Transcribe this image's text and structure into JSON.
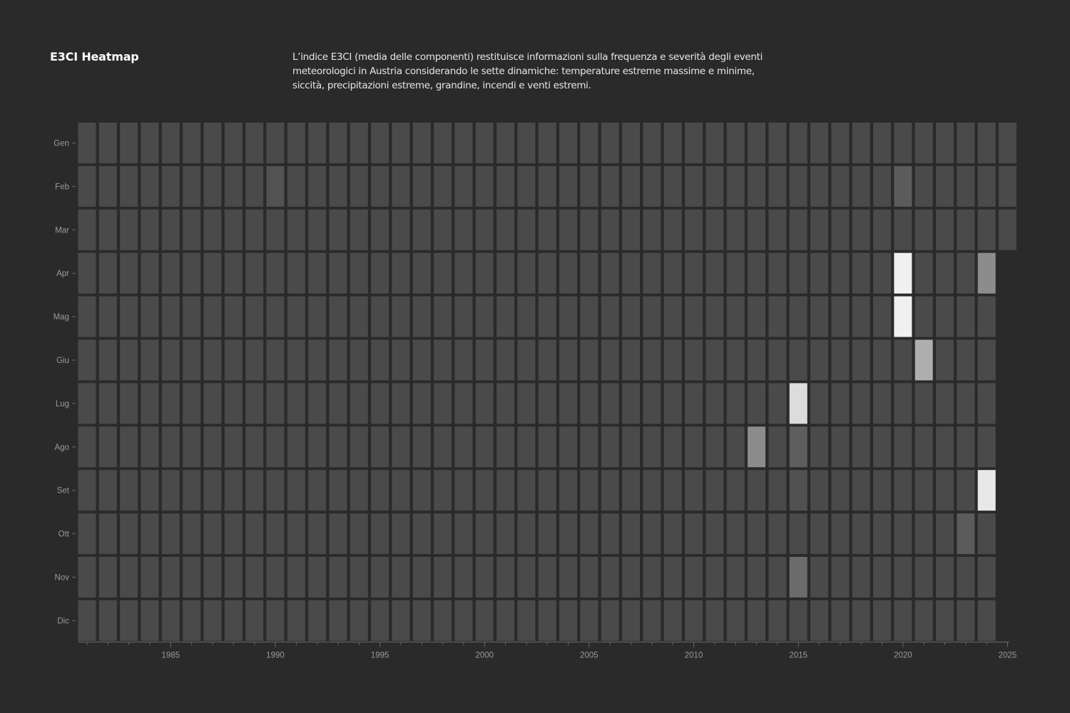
{
  "header": {
    "title": "E3CI Heatmap",
    "description": "L’indice E3CI (media delle componenti) restituisce informazioni sulla frequenza e severità degli eventi meteorologici in Austria considerando le sette dinamiche: temperature estreme massime e minime, siccità, precipitazioni estreme, grandine, incendi e venti estremi."
  },
  "colors": {
    "background": "#2a2a2a",
    "cell_base": "#4a4a4a",
    "cell_max": "#f0f0f0",
    "axis": "#6a6a6a",
    "tick_text": "#9a9a9a"
  },
  "chart_data": {
    "type": "heatmap",
    "title": "E3CI Heatmap",
    "x_labels": [
      "1985",
      "1990",
      "1995",
      "2000",
      "2005",
      "2010",
      "2015",
      "2020",
      "2025"
    ],
    "y_labels": [
      "Gen",
      "Feb",
      "Mar",
      "Apr",
      "Mag",
      "Giu",
      "Lug",
      "Ago",
      "Set",
      "Ott",
      "Nov",
      "Dic"
    ],
    "year_range": [
      1981,
      2025
    ],
    "last_month": "2025-03",
    "value_scale": "0 = base grey, 1 = near white",
    "highlights": [
      {
        "year": 1990,
        "month": "Feb",
        "value": 0.05
      },
      {
        "year": 2020,
        "month": "Feb",
        "value": 0.1
      },
      {
        "year": 2020,
        "month": "Apr",
        "value": 1.0
      },
      {
        "year": 2020,
        "month": "Mag",
        "value": 1.0
      },
      {
        "year": 2021,
        "month": "Giu",
        "value": 0.6
      },
      {
        "year": 2024,
        "month": "Apr",
        "value": 0.4
      },
      {
        "year": 2024,
        "month": "Set",
        "value": 0.95
      },
      {
        "year": 2023,
        "month": "Ott",
        "value": 0.1
      },
      {
        "year": 2015,
        "month": "Lug",
        "value": 0.88
      },
      {
        "year": 2015,
        "month": "Ago",
        "value": 0.12
      },
      {
        "year": 2015,
        "month": "Set",
        "value": 0.04
      },
      {
        "year": 2015,
        "month": "Nov",
        "value": 0.2
      },
      {
        "year": 2013,
        "month": "Ago",
        "value": 0.4
      }
    ]
  }
}
